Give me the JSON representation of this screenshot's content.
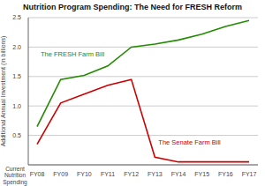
{
  "chart_data": {
    "type": "line",
    "title": "Nutrition Program Spending: The Need for FRESH Reform",
    "y_label": "Additional Annual Investment (in billions)",
    "x_label": "Current\nNutrition\nSpending",
    "categories": [
      "FY08",
      "FY09",
      "FY10",
      "FY11",
      "FY12",
      "FY13",
      "FY14",
      "FY15",
      "FY16",
      "FY17"
    ],
    "series": [
      {
        "name": "The FRESH Farm Bill",
        "color": "#228B00",
        "values": [
          0.65,
          1.45,
          1.52,
          1.68,
          2.0,
          2.05,
          2.12,
          2.22,
          2.35,
          2.45
        ]
      },
      {
        "name": "The Senate Farm Bill",
        "color": "#CC0000",
        "values": [
          0.35,
          1.05,
          1.2,
          1.35,
          1.45,
          0.13,
          0.05,
          0.05,
          0.05,
          0.05
        ]
      }
    ],
    "ylim": [
      0,
      2.5
    ],
    "yticks": [
      0.5,
      {
        "value": 1,
        "label": "1.0"
      },
      1.5,
      {
        "value": 2,
        "label": "2.0"
      },
      2.5
    ],
    "grid": true
  }
}
